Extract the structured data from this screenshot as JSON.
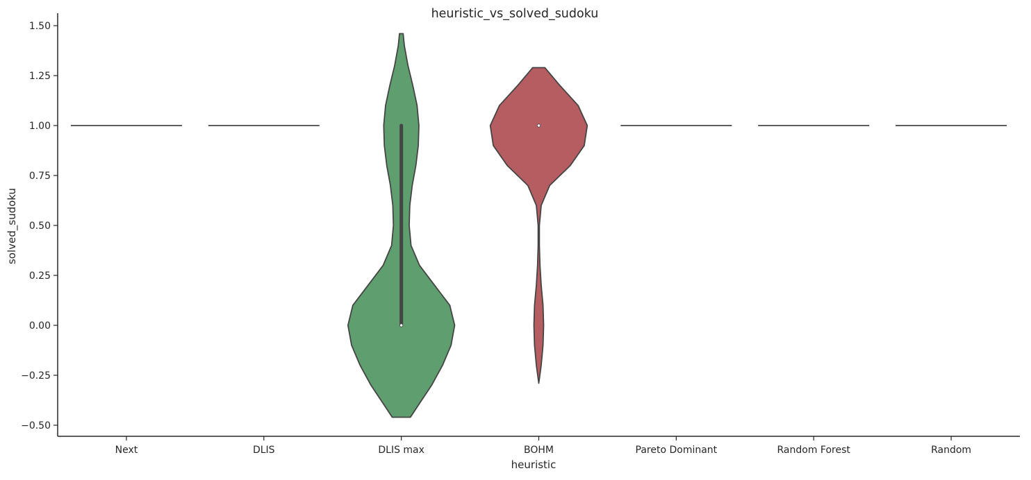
{
  "chart_data": {
    "type": "violin",
    "title": "heuristic_vs_solved_sudoku",
    "xlabel": "heuristic",
    "ylabel": "solved_sudoku",
    "ylim": [
      -0.55,
      1.55
    ],
    "yticks": [
      -0.5,
      -0.25,
      0.0,
      0.25,
      0.5,
      0.75,
      1.0,
      1.25,
      1.5
    ],
    "ytick_labels": [
      "−0.50",
      "−0.25",
      "0.00",
      "0.25",
      "0.50",
      "0.75",
      "1.00",
      "1.25",
      "1.50"
    ],
    "categories": [
      "Next",
      "DLIS",
      "DLIS max",
      "BOHM",
      "Pareto Dominant",
      "Random Forest",
      "Random"
    ],
    "grid": false,
    "legend": "none",
    "violins": [
      {
        "category": "Next",
        "color": "#4c72b0",
        "kind": "constant",
        "value": 1.0
      },
      {
        "category": "DLIS",
        "color": "#dd8452",
        "kind": "constant",
        "value": 1.0
      },
      {
        "category": "DLIS max",
        "color": "#5f9e6e",
        "kind": "density",
        "ymin": -0.46,
        "ymax": 1.46,
        "median": 0.0,
        "q1": 0.0,
        "q3": 1.0,
        "profile": [
          [
            -0.46,
            0.15
          ],
          [
            -0.4,
            0.28
          ],
          [
            -0.3,
            0.5
          ],
          [
            -0.2,
            0.68
          ],
          [
            -0.1,
            0.82
          ],
          [
            0.0,
            0.88
          ],
          [
            0.1,
            0.8
          ],
          [
            0.2,
            0.55
          ],
          [
            0.3,
            0.3
          ],
          [
            0.4,
            0.16
          ],
          [
            0.5,
            0.13
          ],
          [
            0.6,
            0.14
          ],
          [
            0.7,
            0.18
          ],
          [
            0.8,
            0.24
          ],
          [
            0.9,
            0.28
          ],
          [
            1.0,
            0.29
          ],
          [
            1.1,
            0.26
          ],
          [
            1.2,
            0.19
          ],
          [
            1.3,
            0.11
          ],
          [
            1.4,
            0.05
          ],
          [
            1.46,
            0.03
          ]
        ]
      },
      {
        "category": "BOHM",
        "color": "#b55d60",
        "kind": "density",
        "ymin": -0.29,
        "ymax": 1.29,
        "median": 1.0,
        "q1": 1.0,
        "q3": 1.0,
        "profile": [
          [
            -0.29,
            0.0
          ],
          [
            -0.2,
            0.04
          ],
          [
            -0.1,
            0.07
          ],
          [
            0.0,
            0.08
          ],
          [
            0.1,
            0.07
          ],
          [
            0.2,
            0.04
          ],
          [
            0.3,
            0.02
          ],
          [
            0.4,
            0.01
          ],
          [
            0.5,
            0.01
          ],
          [
            0.6,
            0.04
          ],
          [
            0.7,
            0.18
          ],
          [
            0.8,
            0.52
          ],
          [
            0.9,
            0.75
          ],
          [
            1.0,
            0.8
          ],
          [
            1.1,
            0.65
          ],
          [
            1.2,
            0.35
          ],
          [
            1.29,
            0.1
          ]
        ]
      },
      {
        "category": "Pareto Dominant",
        "color": "#8172b3",
        "kind": "constant",
        "value": 1.0
      },
      {
        "category": "Random Forest",
        "color": "#937860",
        "kind": "constant",
        "value": 1.0
      },
      {
        "category": "Random",
        "color": "#da8bc3",
        "kind": "constant",
        "value": 1.0
      }
    ]
  }
}
